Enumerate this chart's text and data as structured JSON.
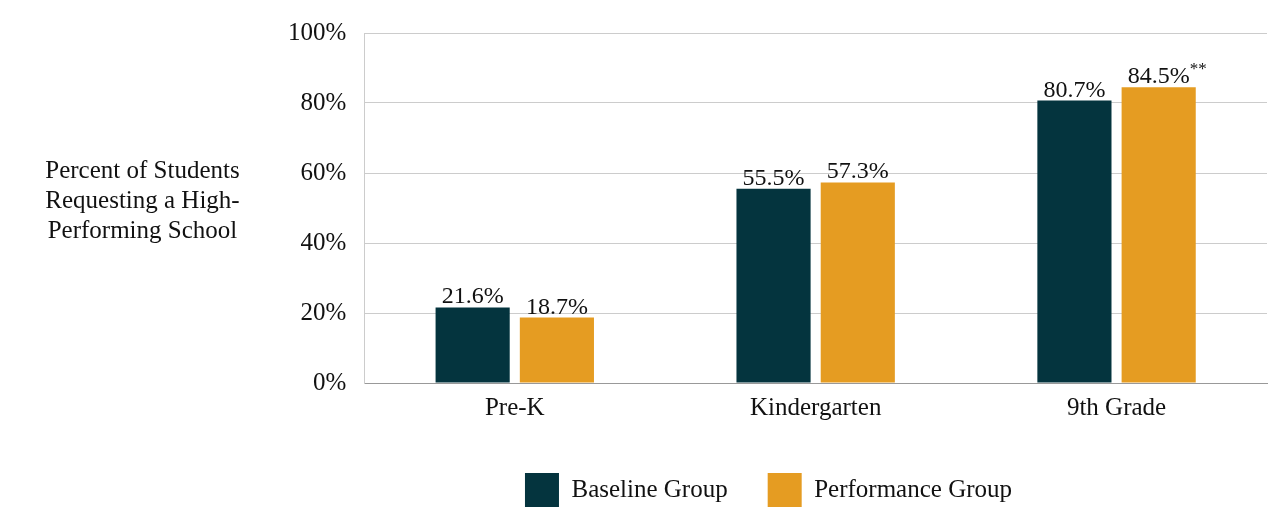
{
  "chart_data": {
    "type": "bar",
    "ylabel": "Percent of Students Requesting a High-Performing School",
    "categories": [
      "Pre-K",
      "Kindergarten",
      "9th Grade"
    ],
    "series": [
      {
        "name": "Baseline Group",
        "color": "#04343e",
        "values": [
          21.6,
          55.5,
          80.7
        ],
        "value_labels": [
          "21.6%",
          "55.5%",
          "80.7%"
        ]
      },
      {
        "name": "Performance Group",
        "color": "#e59c22",
        "values": [
          18.7,
          57.3,
          84.5
        ],
        "value_labels": [
          "18.7%",
          "57.3%",
          "84.5%$^{**}$"
        ]
      }
    ],
    "ylim": [
      0,
      100
    ],
    "yticks": [
      {
        "value": 0,
        "label": "0%"
      },
      {
        "value": 20,
        "label": "20%"
      },
      {
        "value": 40,
        "label": "40%"
      },
      {
        "value": 60,
        "label": "60%"
      },
      {
        "value": 80,
        "label": "80%"
      },
      {
        "value": 100,
        "label": "100%"
      }
    ],
    "grid": "y",
    "legend": "bottom"
  }
}
